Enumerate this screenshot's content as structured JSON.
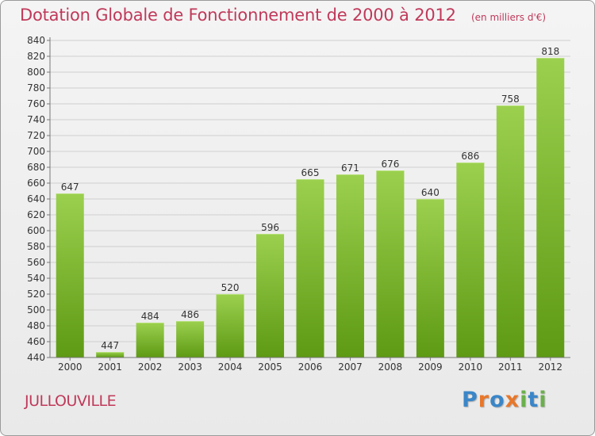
{
  "header": {
    "title": "Dotation Globale de Fonctionnement de 2000 à 2012",
    "unit": "(en milliers d'€)"
  },
  "footer": {
    "commune": "JULLOUVILLE",
    "brand": "Proxiti",
    "brand_letters": [
      {
        "char": "P",
        "color": "#3a86c8"
      },
      {
        "char": "r",
        "color": "#e8772a"
      },
      {
        "char": "o",
        "color": "#3a86c8"
      },
      {
        "char": "x",
        "color": "#e8772a"
      },
      {
        "char": "i",
        "color": "#6ab04c"
      },
      {
        "char": "t",
        "color": "#3a86c8"
      },
      {
        "char": "i",
        "color": "#6ab04c"
      }
    ]
  },
  "colors": {
    "bar_light": "#9bd04e",
    "bar_dark": "#5e9a14",
    "grid": "#cfcfcf",
    "title": "#c0395a"
  },
  "chart_data": {
    "type": "bar",
    "categories": [
      "2000",
      "2001",
      "2002",
      "2003",
      "2004",
      "2005",
      "2006",
      "2007",
      "2008",
      "2009",
      "2010",
      "2011",
      "2012"
    ],
    "values": [
      647,
      447,
      484,
      486,
      520,
      596,
      665,
      671,
      676,
      640,
      686,
      758,
      818
    ],
    "ylim": [
      440,
      840
    ],
    "yticks": [
      440,
      460,
      480,
      500,
      520,
      540,
      560,
      580,
      600,
      620,
      640,
      660,
      680,
      700,
      720,
      740,
      760,
      780,
      800,
      820,
      840
    ],
    "grid": true
  }
}
